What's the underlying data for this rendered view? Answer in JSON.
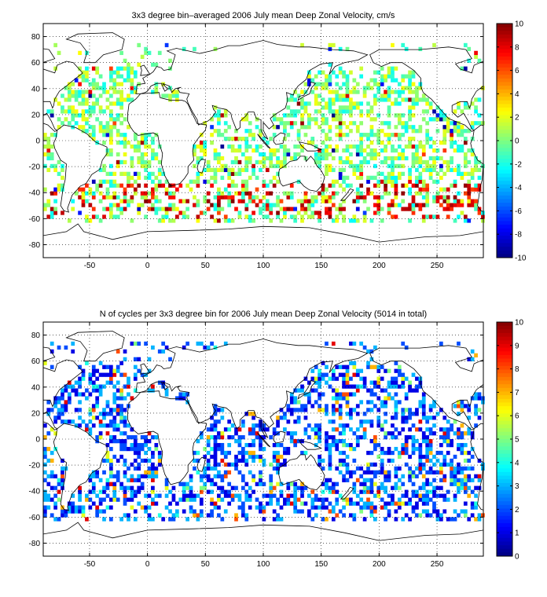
{
  "chart_data": [
    {
      "type": "heatmap",
      "title": "3x3 degree bin–averaged 2006 July mean Deep Zonal Velocity, cm/s",
      "xlabel": "",
      "ylabel": "",
      "xlim": [
        -90,
        290
      ],
      "ylim": [
        -90,
        90
      ],
      "x_ticks": [
        -50,
        0,
        50,
        100,
        150,
        200,
        250
      ],
      "y_ticks": [
        80,
        60,
        40,
        20,
        0,
        -20,
        -40,
        -60,
        -80
      ],
      "grid": true,
      "colorbar": {
        "range": [
          -10,
          10
        ],
        "ticks": [
          10,
          8,
          6,
          4,
          2,
          0,
          -2,
          -4,
          -6,
          -8,
          -10
        ],
        "colormap": "jet",
        "placement": "right"
      },
      "bin_size_deg": 3,
      "overlay": "world coastlines"
    },
    {
      "type": "heatmap",
      "title": "N of cycles per 3x3 degree bin for 2006 July mean Deep Zonal Velocity (5014 in total)",
      "xlabel": "",
      "ylabel": "",
      "xlim": [
        -90,
        290
      ],
      "ylim": [
        -90,
        90
      ],
      "x_ticks": [
        -50,
        0,
        50,
        100,
        150,
        200,
        250
      ],
      "y_ticks": [
        80,
        60,
        40,
        20,
        0,
        -20,
        -40,
        -60,
        -80
      ],
      "grid": true,
      "colorbar": {
        "range": [
          0,
          10
        ],
        "ticks": [
          10,
          9,
          8,
          7,
          6,
          5,
          4,
          3,
          2,
          1,
          0
        ],
        "colormap": "jet",
        "placement": "right"
      },
      "bin_size_deg": 3,
      "total_cycles": 5014,
      "overlay": "world coastlines"
    }
  ]
}
